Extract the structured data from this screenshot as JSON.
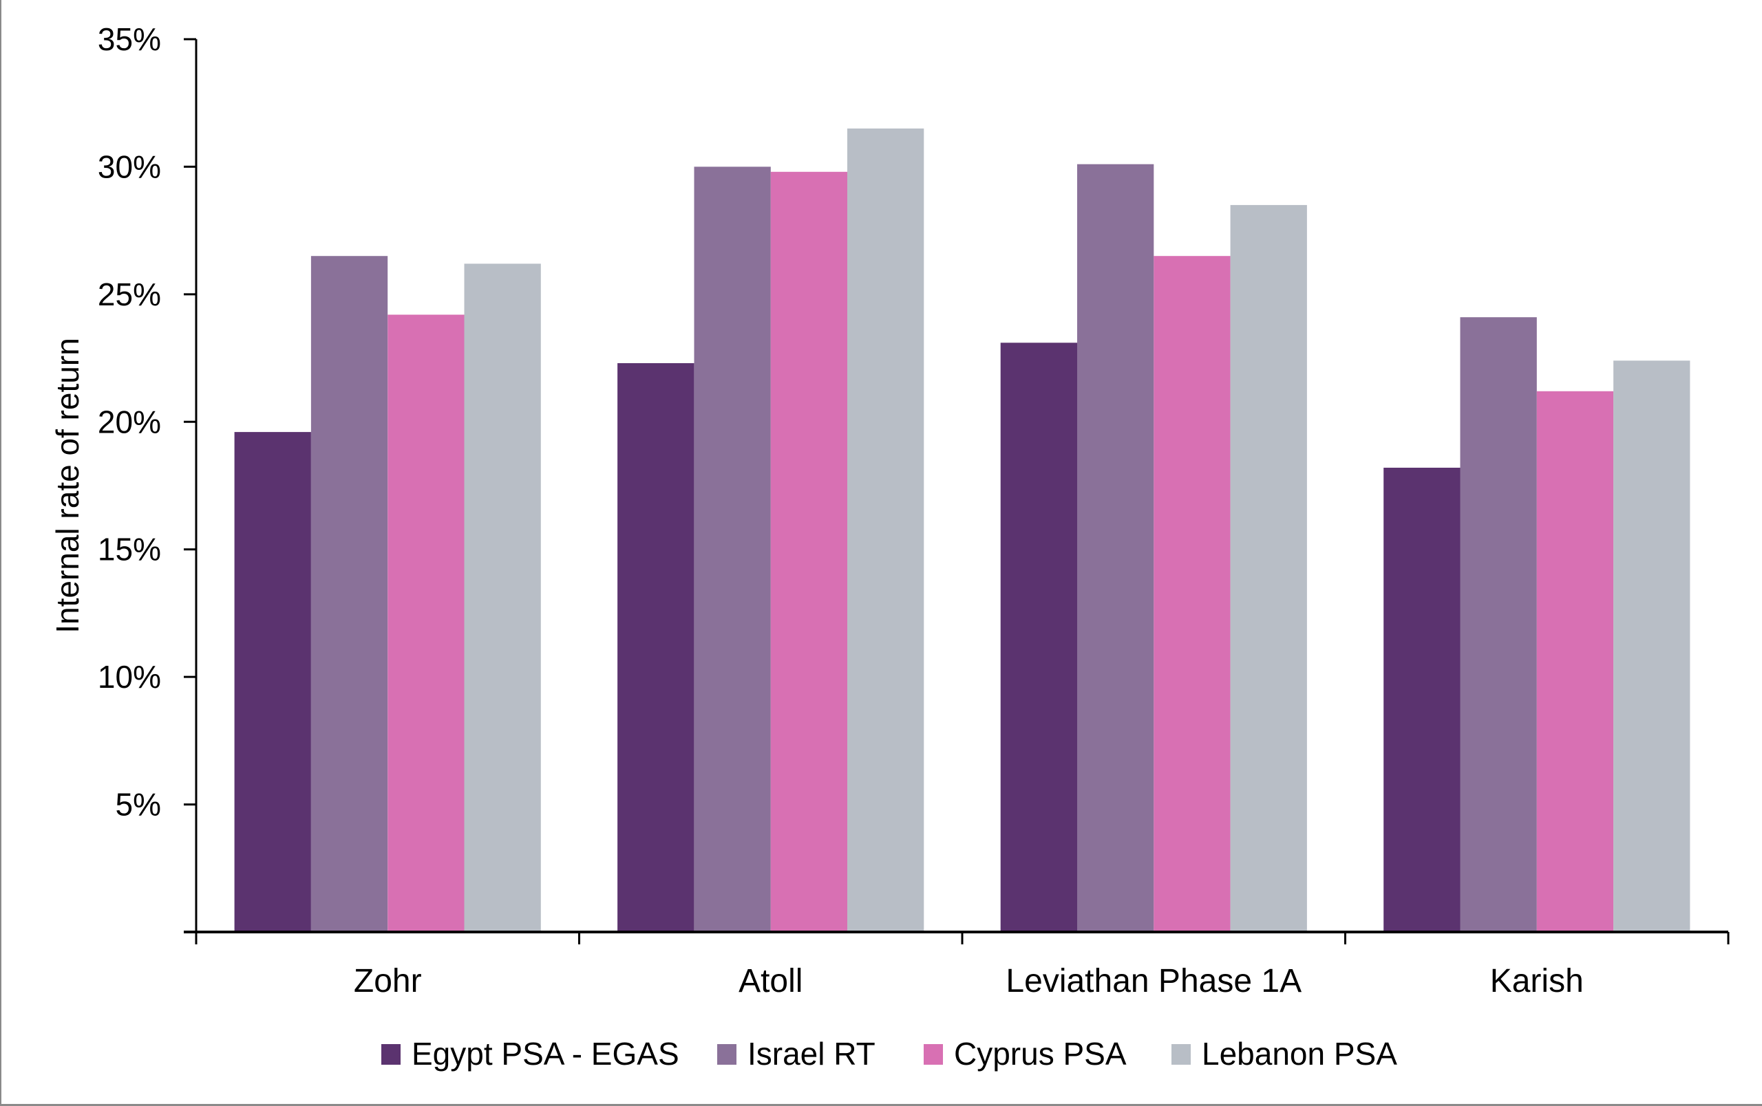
{
  "chart_data": {
    "type": "bar",
    "title": "",
    "xlabel": "",
    "ylabel": "Internal rate of return",
    "ylim": [
      0,
      35
    ],
    "yticks": [
      5,
      10,
      15,
      20,
      25,
      30,
      35
    ],
    "ytick_labels": [
      "5%",
      "10%",
      "15%",
      "20%",
      "25%",
      "30%",
      "35%"
    ],
    "grid": false,
    "legend_position": "bottom",
    "categories": [
      "Zohr",
      "Atoll",
      "Leviathan Phase 1A",
      "Karish"
    ],
    "series": [
      {
        "name": "Egypt PSA - EGAS",
        "color": "#5b336f",
        "values": [
          19.6,
          22.3,
          23.1,
          18.2
        ]
      },
      {
        "name": "Israel RT",
        "color": "#8a7199",
        "values": [
          26.5,
          30.0,
          30.1,
          24.1
        ]
      },
      {
        "name": "Cyprus PSA",
        "color": "#d870b3",
        "values": [
          24.2,
          29.8,
          26.5,
          21.2
        ]
      },
      {
        "name": "Lebanon PSA",
        "color": "#b8bec6",
        "values": [
          26.2,
          31.5,
          28.5,
          22.4
        ]
      }
    ]
  }
}
